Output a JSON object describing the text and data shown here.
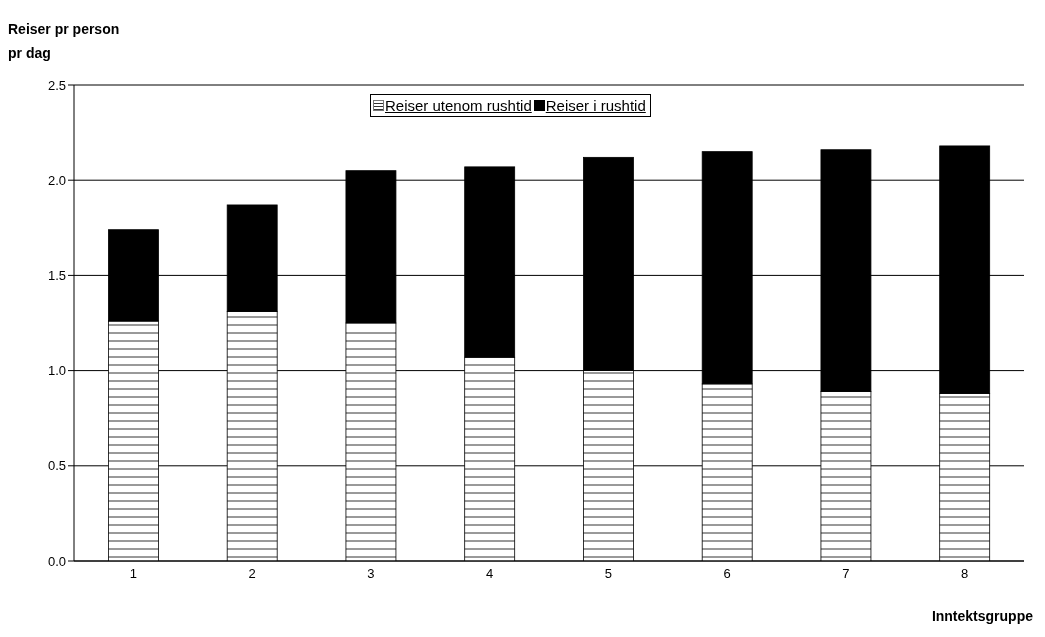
{
  "chart_data": {
    "type": "bar",
    "ylabel": "Reiser pr person pr dag",
    "xlabel": "Inntektsgruppe",
    "categories": [
      "1",
      "2",
      "3",
      "4",
      "5",
      "6",
      "7",
      "8"
    ],
    "stacked": true,
    "series": [
      {
        "name": "Reiser utenom rushtid",
        "color": "#ffffff",
        "values": [
          1.26,
          1.31,
          1.25,
          1.07,
          1.0,
          0.93,
          0.89,
          0.88
        ]
      },
      {
        "name": "Reiser i rushtid",
        "color": "#000000",
        "values": [
          0.48,
          0.56,
          0.8,
          1.0,
          1.12,
          1.22,
          1.27,
          1.3
        ]
      }
    ],
    "ylim": [
      0,
      2.5
    ],
    "yticks": [
      {
        "value": 0,
        "label": "0.0"
      },
      {
        "value": 0.5,
        "label": "0.5"
      },
      {
        "value": 1,
        "label": "1.0"
      },
      {
        "value": 1.5,
        "label": "1.5"
      },
      {
        "value": 2,
        "label": "2.0"
      },
      {
        "value": 2.5,
        "label": "2.5"
      }
    ],
    "grid": "y",
    "legend": "top"
  }
}
